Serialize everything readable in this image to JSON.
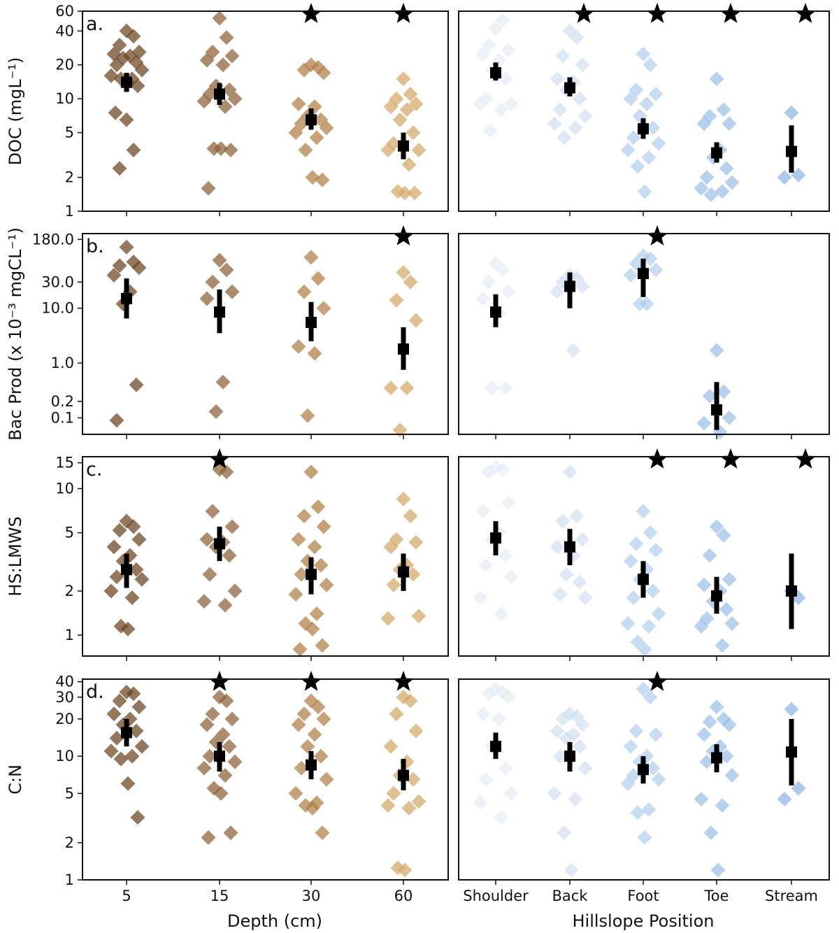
{
  "chart_data": {
    "type": "scatter",
    "y_scale": "log",
    "grid": false,
    "colors": {
      "depth": [
        "#6b4420",
        "#8c5f36",
        "#b07e44",
        "#d2a866"
      ],
      "hillslope": [
        "#e0eaf4",
        "#cadcef",
        "#a6c8ea",
        "#8cb7e4",
        "#7aaadf"
      ],
      "summary": "#000000"
    },
    "x_groups": {
      "depth": {
        "xlabel": "Depth (cm)",
        "categories": [
          "5",
          "15",
          "30",
          "60"
        ]
      },
      "hillslope": {
        "xlabel": "Hillslope Position",
        "categories": [
          "Shoulder",
          "Back",
          "Foot",
          "Toe",
          "Stream"
        ]
      }
    },
    "panels": [
      {
        "letter": "a.",
        "ylabel": "DOC (mgL⁻¹)",
        "ylim": [
          1,
          60
        ],
        "yticks": [
          1,
          2,
          5,
          10,
          20,
          40,
          60
        ],
        "ytick_labels": [
          "1",
          "2",
          "5",
          "10",
          "20",
          "40",
          "60"
        ],
        "depth": {
          "points": [
            [
              40,
              36,
              30,
              26,
              25,
              24,
              23,
              21,
              20,
              18,
              16,
              15,
              15,
              14,
              13,
              7.5,
              6.5,
              3.5,
              2.4
            ],
            [
              52,
              35,
              26,
              24,
              22,
              20,
              13,
              12,
              11,
              10,
              9.5,
              8.5,
              3.6,
              3.6,
              3.5,
              1.6
            ],
            [
              20,
              19,
              18,
              17,
              9,
              8.5,
              7,
              6.5,
              6,
              5.5,
              5,
              4.5,
              3.5,
              2,
              1.9
            ],
            [
              15,
              11,
              10,
              9,
              8.5,
              8,
              6.5,
              5,
              4,
              3.5,
              3.5,
              2.6,
              1.5,
              1.45,
              1.45
            ]
          ],
          "summary": [
            {
              "center": 14,
              "low": 11.5,
              "high": 17
            },
            {
              "center": 11,
              "low": 8.8,
              "high": 13.8
            },
            {
              "center": 6.5,
              "low": 5.3,
              "high": 8.2
            },
            {
              "center": 3.8,
              "low": 2.9,
              "high": 5
            }
          ],
          "stars": [
            false,
            false,
            true,
            true
          ]
        },
        "hillslope": {
          "points": [
            [
              42,
              50,
              30,
              27,
              25,
              22,
              18,
              15,
              10,
              9,
              9,
              8,
              5.2
            ],
            [
              40,
              35,
              24,
              20,
              15,
              14,
              12,
              10,
              8,
              7,
              6,
              5.5,
              4.5
            ],
            [
              25,
              20,
              12,
              11,
              10,
              9,
              7,
              5.5,
              4.5,
              4,
              3.5,
              3,
              2.5,
              1.5
            ],
            [
              15,
              8,
              7,
              6,
              6,
              3.5,
              3,
              2.4,
              2,
              1.8,
              1.6,
              1.5,
              1.4
            ],
            [
              7.5,
              2.1,
              2
            ]
          ],
          "summary": [
            {
              "center": 17,
              "low": 14.5,
              "high": 21
            },
            {
              "center": 12.5,
              "low": 10.5,
              "high": 15.5
            },
            {
              "center": 5.4,
              "low": 4.4,
              "high": 6.7
            },
            {
              "center": 3.3,
              "low": 2.7,
              "high": 4.1
            },
            {
              "center": 3.4,
              "low": 2.2,
              "high": 5.8
            }
          ],
          "stars": [
            false,
            true,
            true,
            true,
            true
          ]
        }
      },
      {
        "letter": "b.",
        "ylabel": "Bac Prod (x 10⁻³ mgCL⁻¹)",
        "ylim": [
          0.05,
          230
        ],
        "yticks": [
          0.1,
          0.2,
          1.0,
          10.0,
          30.0,
          180.0
        ],
        "ytick_labels": [
          "0.1",
          "0.2",
          "1.0",
          "10.0",
          "30.0",
          "180.0"
        ],
        "depth": {
          "points": [
            [
              130,
              70,
              60,
              55,
              40,
              20,
              12,
              0.4,
              0.09
            ],
            [
              75,
              50,
              30,
              20,
              15,
              0.45,
              0.13
            ],
            [
              85,
              35,
              20,
              10,
              2,
              1.5,
              0.11
            ],
            [
              45,
              30,
              14,
              6,
              0.35,
              0.35,
              0.06
            ]
          ],
          "summary": [
            {
              "center": 15,
              "low": 6.5,
              "high": 35
            },
            {
              "center": 8.5,
              "low": 3.5,
              "high": 22
            },
            {
              "center": 5.5,
              "low": 2.5,
              "high": 13
            },
            {
              "center": 1.8,
              "low": 0.75,
              "high": 4.5
            }
          ],
          "stars": [
            false,
            false,
            false,
            true
          ]
        },
        "hillslope": {
          "points": [
            [
              65,
              50,
              30,
              20,
              15,
              8,
              0.35,
              0.35
            ],
            [
              40,
              35,
              30,
              25,
              20,
              1.7
            ],
            [
              90,
              80,
              65,
              50,
              40,
              12,
              12
            ],
            [
              1.7,
              0.3,
              0.25,
              0.1,
              0.08,
              0.055
            ],
            []
          ],
          "summary": [
            {
              "center": 8.5,
              "low": 4.5,
              "high": 18
            },
            {
              "center": 25,
              "low": 10,
              "high": 45
            },
            {
              "center": 43,
              "low": 16,
              "high": 80
            },
            {
              "center": 0.14,
              "low": 0.06,
              "high": 0.45
            },
            null
          ],
          "stars": [
            false,
            false,
            true,
            false,
            false
          ]
        }
      },
      {
        "letter": "c.",
        "ylabel": "HS:LMWS",
        "ylim": [
          0.72,
          16.5
        ],
        "yticks": [
          1,
          2,
          5,
          10,
          15
        ],
        "ytick_labels": [
          "1",
          "2",
          "5",
          "10",
          "15"
        ],
        "depth": {
          "points": [
            [
              6,
              5.5,
              5.2,
              4.5,
              4,
              3.5,
              3.2,
              2.8,
              2.5,
              2.4,
              2,
              1.8,
              1.15,
              1.1
            ],
            [
              13.5,
              13,
              7,
              5.5,
              4.5,
              4.3,
              4,
              3.5,
              2.6,
              2,
              1.7,
              1.6
            ],
            [
              13,
              7.5,
              6.5,
              5.5,
              4.5,
              4,
              3.2,
              3,
              2.6,
              2.2,
              1.9,
              1.4,
              1.2,
              1.1,
              0.85,
              0.8
            ],
            [
              8.5,
              6.5,
              4.5,
              4.3,
              4,
              3,
              2.8,
              2.6,
              2.2,
              1.35,
              1.3
            ]
          ],
          "summary": [
            {
              "center": 2.8,
              "low": 2.1,
              "high": 3.6
            },
            {
              "center": 4.2,
              "low": 3.2,
              "high": 5.5
            },
            {
              "center": 2.6,
              "low": 1.9,
              "high": 3.4
            },
            {
              "center": 2.7,
              "low": 2,
              "high": 3.6
            }
          ],
          "stars": [
            false,
            true,
            false,
            false
          ]
        },
        "hillslope": {
          "points": [
            [
              14,
              13.5,
              13,
              8,
              7,
              5,
              4.5,
              3.5,
              3,
              2.5,
              1.8,
              1.4
            ],
            [
              13,
              6.5,
              6,
              4.5,
              4,
              3.5,
              2.6,
              2.3,
              1.9,
              1.8
            ],
            [
              7,
              5,
              4.2,
              3.8,
              3.2,
              2.8,
              2.4,
              2,
              1.8,
              1.4,
              1.2,
              1.15,
              0.9,
              0.8
            ],
            [
              5.5,
              4.8,
              3.5,
              2.4,
              2.2,
              2,
              1.7,
              1.5,
              1.3,
              1.2,
              1.15,
              0.85
            ],
            [
              2,
              1.8
            ]
          ],
          "summary": [
            {
              "center": 4.6,
              "low": 3.5,
              "high": 6
            },
            {
              "center": 4,
              "low": 3,
              "high": 5.3
            },
            {
              "center": 2.4,
              "low": 1.8,
              "high": 3.2
            },
            {
              "center": 1.85,
              "low": 1.4,
              "high": 2.5
            },
            {
              "center": 2,
              "low": 1.1,
              "high": 3.6
            }
          ],
          "stars": [
            false,
            false,
            true,
            true,
            true
          ]
        }
      },
      {
        "letter": "d.",
        "ylabel": "C:N",
        "ylim": [
          1,
          42
        ],
        "yticks": [
          1,
          2,
          5,
          10,
          20,
          30,
          40
        ],
        "ytick_labels": [
          "1",
          "2",
          "5",
          "10",
          "20",
          "30",
          "40"
        ],
        "depth": {
          "points": [
            [
              33,
              32,
              28,
              25,
              22,
              20,
              18,
              16,
              14,
              12,
              11,
              10,
              9.5,
              6,
              3.2
            ],
            [
              30,
              28,
              22,
              20,
              18,
              15,
              13,
              12,
              10,
              9,
              8,
              7,
              5.5,
              5,
              2.4,
              2.2
            ],
            [
              28,
              25,
              22,
              20,
              18,
              15,
              12,
              10,
              8,
              6.5,
              5,
              4.2,
              4,
              3.8,
              2.4
            ],
            [
              30,
              28,
              22,
              16,
              12,
              9,
              7,
              6.5,
              5,
              4.3,
              4,
              3.8,
              1.25,
              1.2
            ]
          ],
          "summary": [
            {
              "center": 15.5,
              "low": 12,
              "high": 20
            },
            {
              "center": 10,
              "low": 7.5,
              "high": 13
            },
            {
              "center": 8.5,
              "low": 6.5,
              "high": 11
            },
            {
              "center": 7,
              "low": 5.3,
              "high": 9.5
            }
          ],
          "stars": [
            false,
            true,
            true,
            true
          ]
        },
        "hillslope": {
          "points": [
            [
              35,
              33,
              32,
              30,
              22,
              20,
              12,
              8,
              6.5,
              5,
              4.2,
              3.2
            ],
            [
              22,
              21,
              20,
              18,
              16,
              15,
              14,
              12,
              10,
              8,
              5,
              4.5,
              2.4,
              1.2
            ],
            [
              35,
              30,
              16,
              15,
              12,
              10,
              9,
              8,
              7,
              6.5,
              6,
              3.7,
              3.5,
              2.2
            ],
            [
              25,
              20,
              19,
              18,
              15,
              12,
              11,
              10,
              9,
              7,
              4.5,
              4,
              2.4,
              1.2
            ],
            [
              24,
              5.5,
              4.5
            ]
          ],
          "summary": [
            {
              "center": 12,
              "low": 9.5,
              "high": 15.5
            },
            {
              "center": 10,
              "low": 7.5,
              "high": 13
            },
            {
              "center": 7.8,
              "low": 6,
              "high": 10
            },
            {
              "center": 9.7,
              "low": 7.4,
              "high": 12.5
            },
            {
              "center": 10.8,
              "low": 5.8,
              "high": 20
            }
          ],
          "stars": [
            false,
            false,
            true,
            false,
            false
          ]
        }
      }
    ]
  }
}
